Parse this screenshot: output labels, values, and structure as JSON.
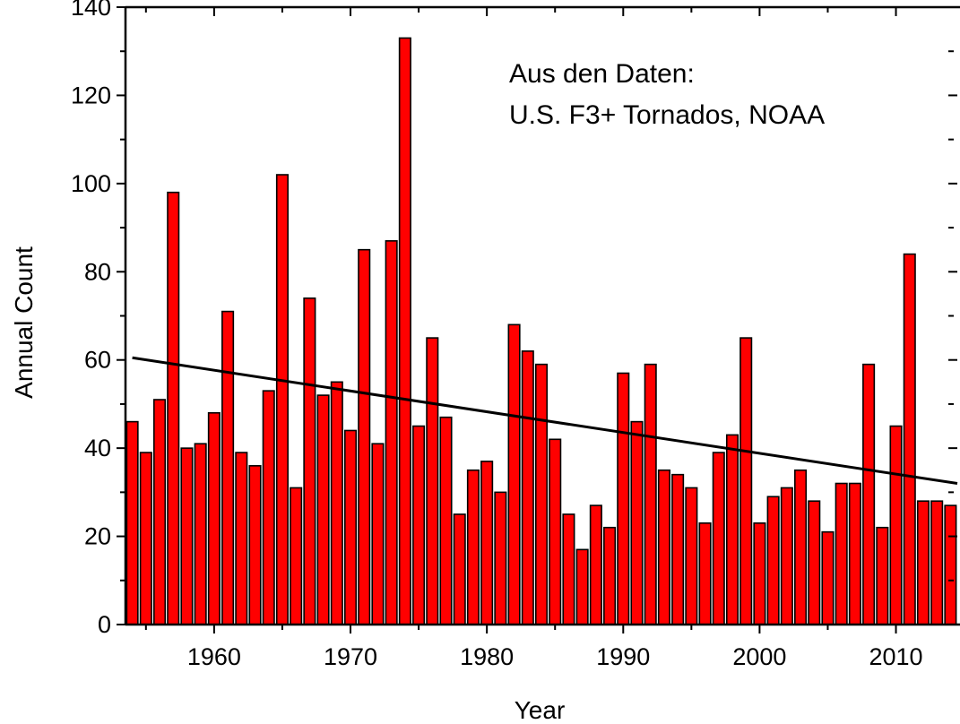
{
  "chart_data": {
    "type": "bar",
    "title": "",
    "xlabel": "Year",
    "ylabel": "Annual Count",
    "xlim": [
      1953.5,
      2014.5
    ],
    "ylim": [
      0,
      140
    ],
    "y_ticks": [
      0,
      20,
      40,
      60,
      80,
      100,
      120,
      140
    ],
    "x_ticks": [
      1960,
      1970,
      1980,
      1990,
      2000,
      2010
    ],
    "x_tick_labels": [
      "1960",
      "1970",
      "1980",
      "1990",
      "2000",
      "2010"
    ],
    "y_tick_labels": [
      "0",
      "20",
      "40",
      "60",
      "80",
      "100",
      "120",
      "140"
    ],
    "grid": false,
    "legend": "none",
    "bar_color": "#ff0000",
    "bar_edge_color": "#000000",
    "annotation": [
      "Aus den Daten:",
      "U.S. F3+ Tornados, NOAA"
    ],
    "series": [
      {
        "x": [
          1954,
          1955,
          1956,
          1957,
          1958,
          1959,
          1960,
          1961,
          1962,
          1963,
          1964,
          1965,
          1966,
          1967,
          1968,
          1969,
          1970,
          1971,
          1972,
          1973,
          1974,
          1975,
          1976,
          1977,
          1978,
          1979,
          1980,
          1981,
          1982,
          1983,
          1984,
          1985,
          1986,
          1987,
          1988,
          1989,
          1990,
          1991,
          1992,
          1993,
          1994,
          1995,
          1996,
          1997,
          1998,
          1999,
          2000,
          2001,
          2002,
          2003,
          2004,
          2005,
          2006,
          2007,
          2008,
          2009,
          2010,
          2011,
          2012,
          2013,
          2014
        ],
        "values": [
          46,
          39,
          51,
          98,
          40,
          41,
          48,
          71,
          39,
          36,
          53,
          102,
          31,
          74,
          52,
          55,
          44,
          85,
          41,
          87,
          133,
          45,
          65,
          47,
          25,
          35,
          37,
          30,
          68,
          62,
          59,
          42,
          25,
          17,
          27,
          22,
          57,
          46,
          59,
          35,
          34,
          31,
          23,
          39,
          43,
          65,
          23,
          29,
          31,
          35,
          28,
          21,
          32,
          32,
          59,
          22,
          45,
          84,
          28,
          28,
          27
        ]
      }
    ],
    "trend_line": {
      "x": [
        1954,
        2014.5
      ],
      "y": [
        60.5,
        32
      ]
    }
  }
}
